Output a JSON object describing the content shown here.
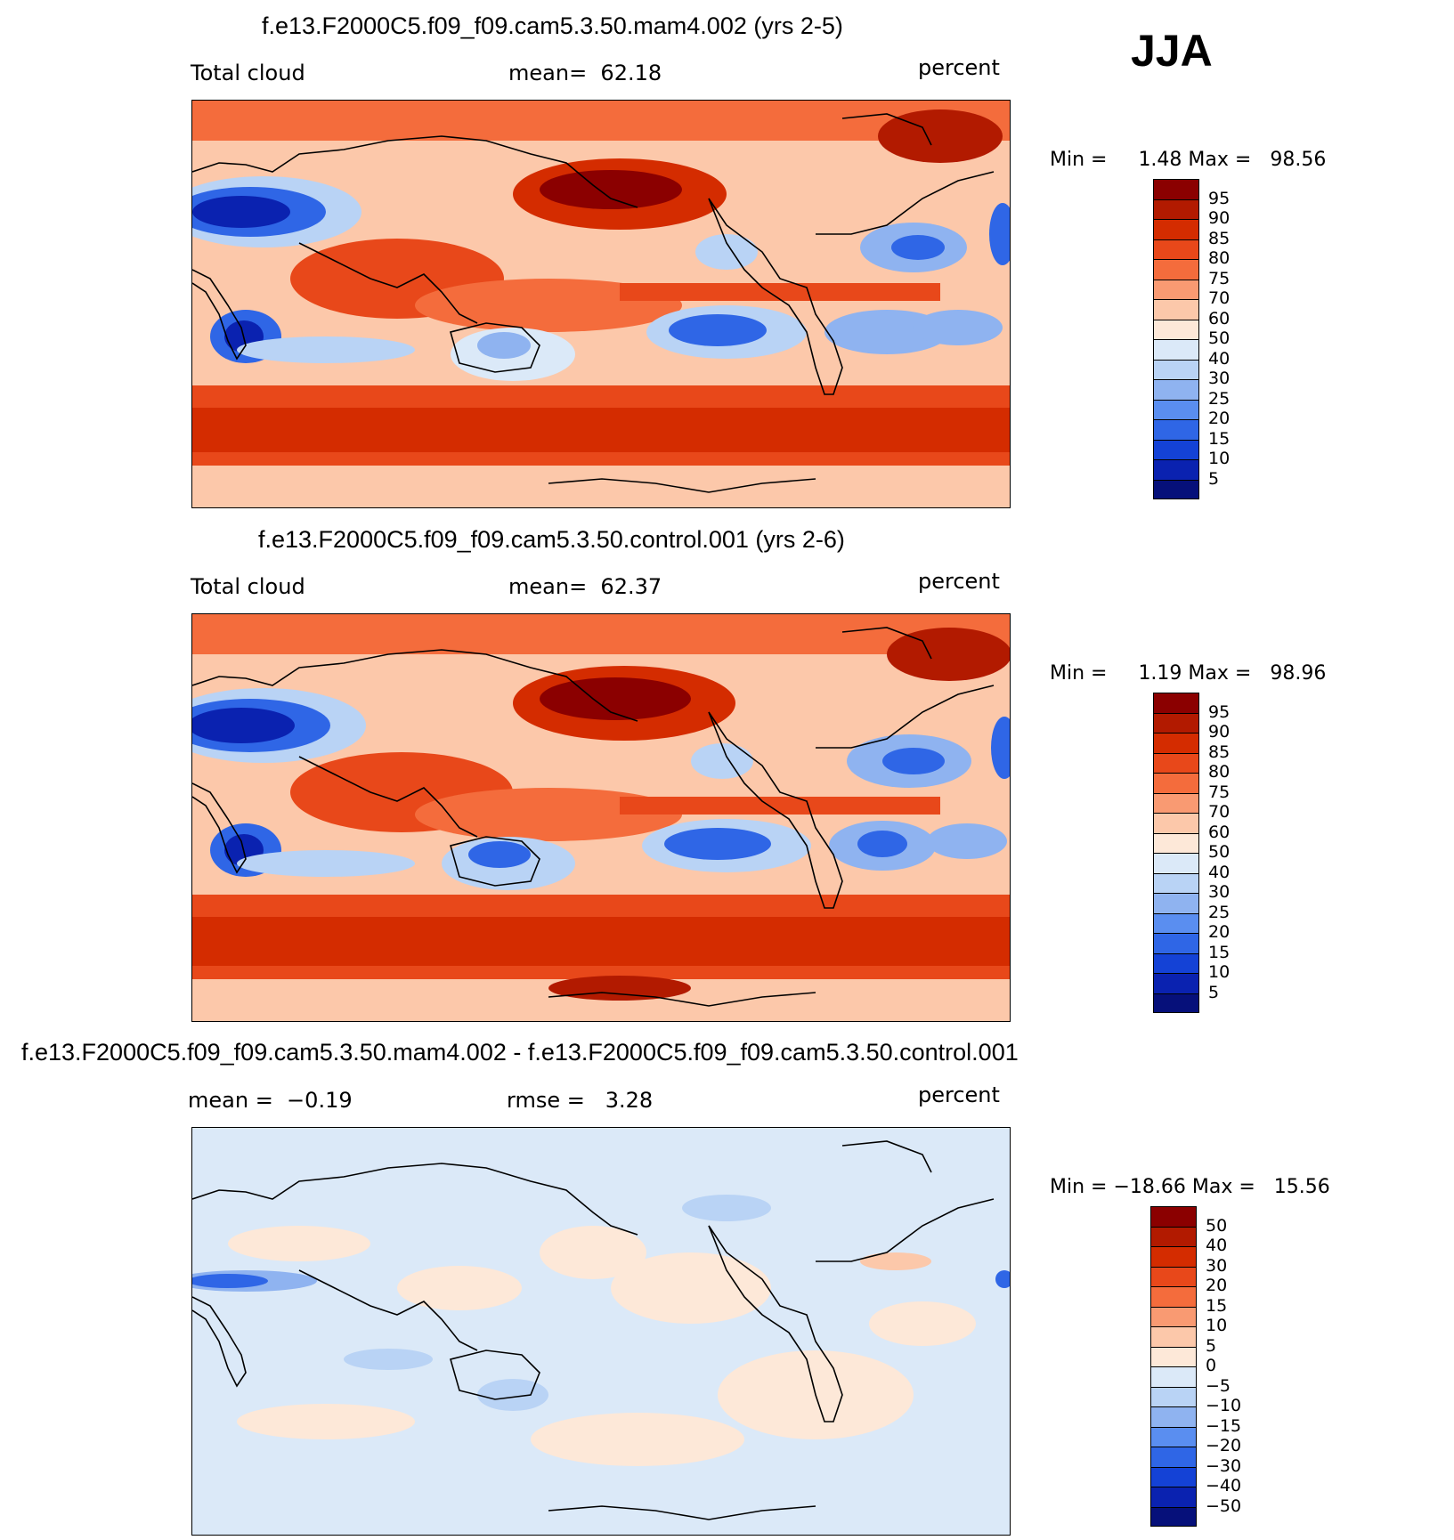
{
  "season_label": "JJA",
  "panels": [
    {
      "title": "f.e13.F2000C5.f09_f09.cam5.3.50.mam4.002 (yrs 2-5)",
      "left_label": "Total cloud",
      "center_label": "mean=  62.18",
      "units": "percent",
      "min_label": "Min =",
      "min_value": "1.48",
      "max_label": "Max =",
      "max_value": "98.56",
      "field": "absolute"
    },
    {
      "title": "f.e13.F2000C5.f09_f09.cam5.3.50.control.001 (yrs 2-6)",
      "left_label": "Total cloud",
      "center_label": "mean=  62.37",
      "units": "percent",
      "min_label": "Min =",
      "min_value": "1.19",
      "max_label": "Max =",
      "max_value": "98.96",
      "field": "absolute"
    },
    {
      "title": "f.e13.F2000C5.f09_f09.cam5.3.50.mam4.002 - f.e13.F2000C5.f09_f09.cam5.3.50.control.001",
      "left_label": "mean =  −0.19",
      "center_label": "rmse =   3.28",
      "units": "percent",
      "min_label": "Min =",
      "min_value": "−18.66",
      "max_label": "Max =",
      "max_value": "15.56",
      "field": "difference"
    }
  ],
  "legend_abs": {
    "labels": [
      "95",
      "90",
      "85",
      "80",
      "75",
      "70",
      "60",
      "50",
      "40",
      "30",
      "25",
      "20",
      "15",
      "10",
      "5"
    ],
    "colors": [
      "#8b0000",
      "#b21a00",
      "#d42c00",
      "#e8481a",
      "#f46c3c",
      "#f99a72",
      "#fcc8aa",
      "#fde8d8",
      "#dbe9f8",
      "#b9d3f5",
      "#8fb3f0",
      "#5a8ef0",
      "#2f66e6",
      "#1442d6",
      "#0a22b0",
      "#06107a"
    ]
  },
  "legend_diff": {
    "labels": [
      "50",
      "40",
      "30",
      "20",
      "15",
      "10",
      "5",
      "0",
      "−5",
      "−10",
      "−15",
      "−20",
      "−30",
      "−40",
      "−50"
    ],
    "colors": [
      "#8b0000",
      "#b21a00",
      "#d42c00",
      "#e8481a",
      "#f46c3c",
      "#f99a72",
      "#fcc8aa",
      "#fde8d8",
      "#dbe9f8",
      "#b9d3f5",
      "#8fb3f0",
      "#5a8ef0",
      "#2f66e6",
      "#1442d6",
      "#0a22b0",
      "#06107a"
    ]
  }
}
